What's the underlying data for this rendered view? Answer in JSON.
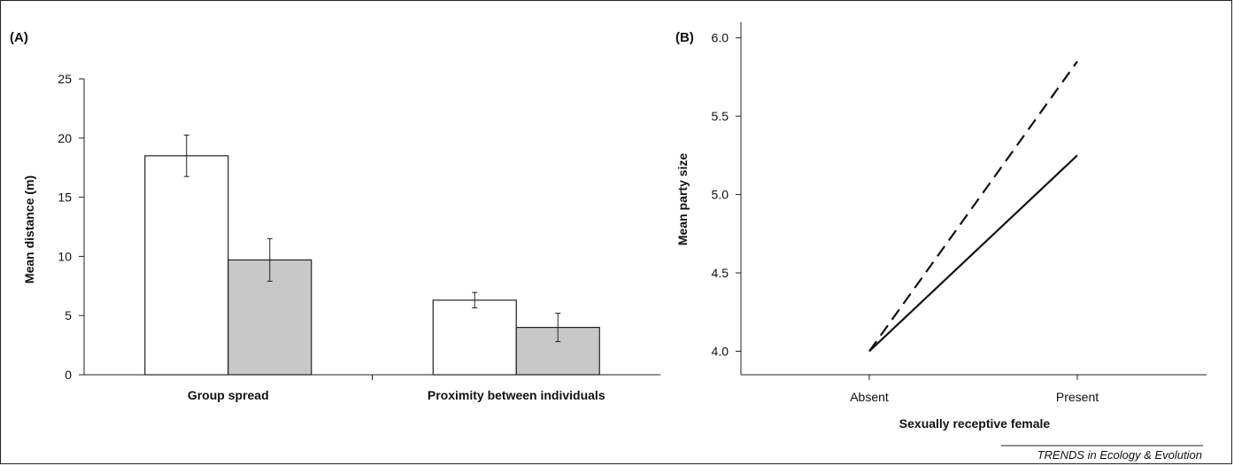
{
  "footer": {
    "journal": "TRENDS in Ecology & Evolution"
  },
  "chart_data": [
    {
      "panel_label": "(A)",
      "type": "bar",
      "title": "",
      "xlabel": "",
      "ylabel": "Mean distance (m)",
      "ylim": [
        0,
        25
      ],
      "yticks": [
        "0",
        "5",
        "10",
        "15",
        "20",
        "25"
      ],
      "categories": [
        "Group spread",
        "Proximity between individuals"
      ],
      "series": [
        {
          "color": "#ffffff",
          "values": [
            18.5,
            6.3
          ],
          "error": [
            1.75,
            0.65
          ]
        },
        {
          "color": "#c8c8c8",
          "values": [
            9.7,
            4.0
          ],
          "error": [
            1.8,
            1.2
          ]
        }
      ],
      "grid": false
    },
    {
      "panel_label": "(B)",
      "type": "line",
      "title": "",
      "xlabel": "Sexually receptive female",
      "ylabel": "Mean party size",
      "ylim": [
        3.85,
        6.1
      ],
      "yticks": [
        "4.0",
        "4.5",
        "5.0",
        "5.5",
        "6.0"
      ],
      "categories": [
        "Absent",
        "Present"
      ],
      "series": [
        {
          "style": "solid",
          "values": [
            4.0,
            5.25
          ]
        },
        {
          "style": "dashed",
          "values": [
            4.0,
            5.85
          ]
        }
      ],
      "grid": false
    }
  ]
}
